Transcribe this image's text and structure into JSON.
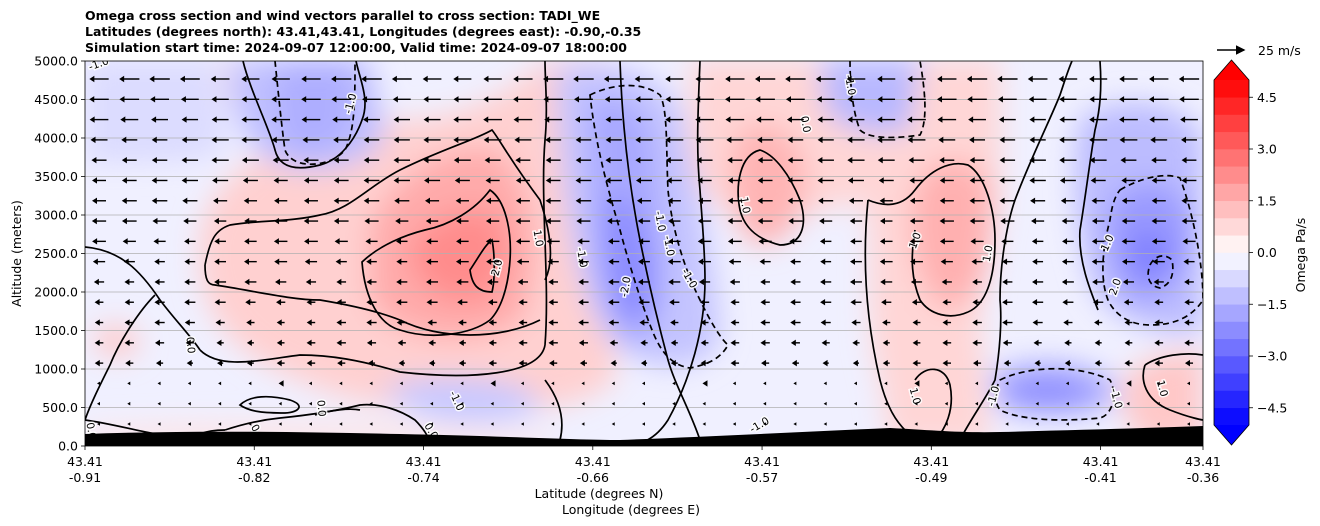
{
  "title_lines": [
    "Omega cross section and wind vectors parallel to cross section: TADI_WE",
    "Latitudes (degrees north): 43.41,43.41, Longitudes (degrees east): -0.90,-0.35",
    "Simulation start time: 2024-09-07 12:00:00, Valid time: 2024-09-07 18:00:00"
  ],
  "chart_data": {
    "type": "heatmap",
    "subtype": "filled contour cross section with contour lines and wind vectors",
    "ylabel": "Altitude (meters)",
    "xlabel_lines": [
      "Latitude (degrees N)",
      "Longitude (degrees E)"
    ],
    "ylim": [
      0,
      5000
    ],
    "y_ticks": [
      "0.0",
      "500.0",
      "1000.0",
      "1500.0",
      "2000.0",
      "2500.0",
      "3000.0",
      "3500.0",
      "4000.0",
      "4500.0",
      "5000.0"
    ],
    "y_tick_values": [
      0,
      500,
      1000,
      1500,
      2000,
      2500,
      3000,
      3500,
      4000,
      4500,
      5000
    ],
    "x_ticks": [
      {
        "lat": "43.41",
        "lon": "-0.91"
      },
      {
        "lat": "43.41",
        "lon": "-0.82"
      },
      {
        "lat": "43.41",
        "lon": "-0.74"
      },
      {
        "lat": "43.41",
        "lon": "-0.66"
      },
      {
        "lat": "43.41",
        "lon": "-0.57"
      },
      {
        "lat": "43.41",
        "lon": "-0.49"
      },
      {
        "lat": "43.41",
        "lon": "-0.41"
      },
      {
        "lat": "43.41",
        "lon": "-0.36"
      }
    ],
    "x_tick_fraction": [
      0.0,
      0.1514,
      0.3028,
      0.4542,
      0.6056,
      0.757,
      0.9084,
      1.0
    ],
    "grid": "horizontal",
    "colorbar": {
      "label": "Omega Pa/s",
      "range": [
        -5,
        5
      ],
      "extend": "both",
      "tick_labels": [
        "4.5",
        "3.0",
        "1.5",
        "0.0",
        "−1.5",
        "−3.0",
        "−4.5"
      ],
      "tick_values": [
        4.5,
        3.0,
        1.5,
        0.0,
        -1.5,
        -3.0,
        -4.5
      ],
      "colormap": "bwr",
      "low_color": "#0000ff",
      "high_color": "#ff0000"
    },
    "wind_key": {
      "label": "25 m/s"
    },
    "contour_labels": [
      {
        "text": "-1.0",
        "x": 0.012,
        "y": 4970,
        "rot": -20
      },
      {
        "text": "-1.0",
        "x": 0.237,
        "y": 4450,
        "rot": -75
      },
      {
        "text": "0.0",
        "x": 0.645,
        "y": 4180,
        "rot": 80
      },
      {
        "text": "-1.0",
        "x": 0.685,
        "y": 4690,
        "rot": 80
      },
      {
        "text": "-1.0",
        "x": 0.515,
        "y": 2920,
        "rot": 80
      },
      {
        "text": "1.0",
        "x": 0.406,
        "y": 2700,
        "rot": 80
      },
      {
        "text": "2.0",
        "x": 0.368,
        "y": 2320,
        "rot": -75
      },
      {
        "text": "-1.0",
        "x": 0.445,
        "y": 2450,
        "rot": 80
      },
      {
        "text": "-2.0",
        "x": 0.483,
        "y": 2070,
        "rot": -80
      },
      {
        "text": "-1.0",
        "x": 0.523,
        "y": 2600,
        "rot": 80
      },
      {
        "text": "-1.0",
        "x": 0.541,
        "y": 2180,
        "rot": 60
      },
      {
        "text": "1.0",
        "x": 0.591,
        "y": 3130,
        "rot": 80
      },
      {
        "text": "1.0",
        "x": 0.742,
        "y": 2670,
        "rot": -70
      },
      {
        "text": "1.0",
        "x": 0.807,
        "y": 2500,
        "rot": -80
      },
      {
        "text": "1.0",
        "x": 0.914,
        "y": 2640,
        "rot": -65
      },
      {
        "text": "2.0",
        "x": 0.921,
        "y": 2070,
        "rot": -70
      },
      {
        "text": "0.0",
        "x": 0.095,
        "y": 1310,
        "rot": 85
      },
      {
        "text": "-1.0",
        "x": 0.333,
        "y": 590,
        "rot": 65
      },
      {
        "text": "0.0",
        "x": 0.212,
        "y": 490,
        "rot": 85
      },
      {
        "text": "0.0",
        "x": 0.31,
        "y": 200,
        "rot": 60
      },
      {
        "text": "0.0",
        "x": 0.155,
        "y": 180,
        "rot": 60
      },
      {
        "text": "0.0",
        "x": 0.006,
        "y": 200,
        "rot": 80
      },
      {
        "text": "-1.0",
        "x": 0.603,
        "y": 280,
        "rot": -30
      },
      {
        "text": "1.0",
        "x": 0.743,
        "y": 650,
        "rot": 75
      },
      {
        "text": "-1.0",
        "x": 0.812,
        "y": 650,
        "rot": -75
      },
      {
        "text": "-1.0",
        "x": 0.923,
        "y": 620,
        "rot": 75
      },
      {
        "text": "1.0",
        "x": 0.964,
        "y": 750,
        "rot": 75
      }
    ]
  }
}
